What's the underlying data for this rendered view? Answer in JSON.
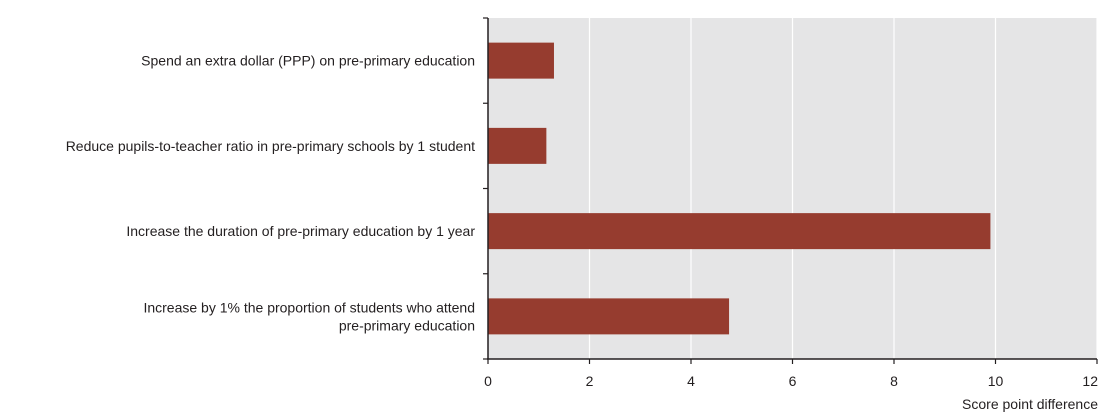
{
  "chart_data": {
    "type": "bar",
    "orientation": "horizontal",
    "categories": [
      [
        "Spend an extra dollar (PPP) on pre-primary education"
      ],
      [
        "Reduce pupils-to-teacher ratio in pre-primary schools by 1 student"
      ],
      [
        "Increase the duration of pre-primary education by 1 year"
      ],
      [
        "Increase by 1% the proportion of students who attend",
        "pre-primary education"
      ]
    ],
    "values": [
      1.3,
      1.15,
      9.9,
      4.75
    ],
    "xlabel": "Score point difference",
    "xlim": [
      0,
      12
    ],
    "xticks": [
      0,
      2,
      4,
      6,
      8,
      10,
      12
    ],
    "grid": true,
    "colors": {
      "bar": "#963c2f",
      "plot_bg": "#e5e5e6",
      "grid": "#ffffff",
      "axis": "#231f20"
    }
  }
}
